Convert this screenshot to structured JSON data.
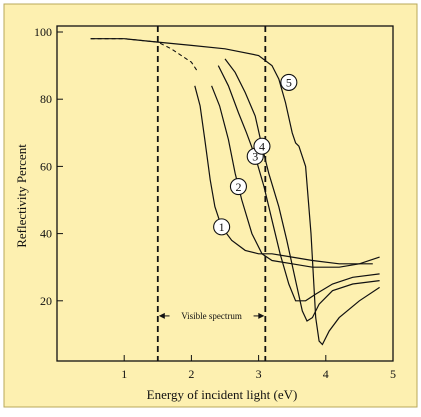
{
  "chart_data": {
    "type": "line",
    "title": "",
    "xlabel": "Energy of incident light (eV)",
    "ylabel": "Reflectivity Percent",
    "xlim": [
      0.0,
      5.0
    ],
    "ylim": [
      0,
      100
    ],
    "x_ticks": [
      "1",
      "2",
      "3",
      "4",
      "5"
    ],
    "y_ticks": [
      "20",
      "40",
      "60",
      "80",
      "100"
    ],
    "grid": false,
    "background_color": "#fdf0b0",
    "plot_background_color": "#fdf0b0",
    "annotation": {
      "label": "Visible spectrum",
      "x_start": 1.5,
      "x_end": 3.1
    },
    "visible_spectrum_bounds": [
      1.5,
      3.1
    ],
    "series": [
      {
        "marker": "1",
        "marker_at": [
          2.45,
          42
        ],
        "points": [
          [
            2.05,
            84
          ],
          [
            2.13,
            78
          ],
          [
            2.2,
            68
          ],
          [
            2.28,
            56
          ],
          [
            2.35,
            48
          ],
          [
            2.45,
            42
          ],
          [
            2.6,
            38
          ],
          [
            2.8,
            35
          ],
          [
            3.0,
            34
          ],
          [
            3.2,
            34
          ],
          [
            3.5,
            33
          ],
          [
            3.8,
            32
          ],
          [
            4.2,
            31
          ],
          [
            4.5,
            31
          ],
          [
            4.7,
            31
          ]
        ]
      },
      {
        "marker": "2",
        "marker_at": [
          2.7,
          54
        ],
        "points": [
          [
            2.3,
            84
          ],
          [
            2.42,
            78
          ],
          [
            2.55,
            68
          ],
          [
            2.65,
            58
          ],
          [
            2.75,
            50
          ],
          [
            2.9,
            40
          ],
          [
            3.05,
            34
          ],
          [
            3.2,
            32
          ],
          [
            3.5,
            31
          ],
          [
            3.8,
            30
          ],
          [
            4.2,
            30
          ],
          [
            4.5,
            31
          ],
          [
            4.8,
            33
          ]
        ]
      },
      {
        "marker": "3",
        "marker_at": [
          2.95,
          63
        ],
        "points": [
          [
            2.4,
            90
          ],
          [
            2.55,
            84
          ],
          [
            2.7,
            76
          ],
          [
            2.82,
            70
          ],
          [
            2.95,
            63
          ],
          [
            3.08,
            54
          ],
          [
            3.2,
            44
          ],
          [
            3.32,
            34
          ],
          [
            3.45,
            25
          ],
          [
            3.55,
            20
          ],
          [
            3.7,
            20
          ],
          [
            3.85,
            22
          ],
          [
            4.1,
            25
          ],
          [
            4.4,
            27
          ],
          [
            4.8,
            28
          ]
        ]
      },
      {
        "marker": "4",
        "marker_at": [
          3.05,
          66
        ],
        "points": [
          [
            2.5,
            92
          ],
          [
            2.65,
            88
          ],
          [
            2.8,
            82
          ],
          [
            2.95,
            75
          ],
          [
            3.05,
            66
          ],
          [
            3.15,
            58
          ],
          [
            3.3,
            48
          ],
          [
            3.42,
            38
          ],
          [
            3.55,
            26
          ],
          [
            3.65,
            17
          ],
          [
            3.72,
            14
          ],
          [
            3.8,
            15
          ],
          [
            3.9,
            19
          ],
          [
            4.1,
            23
          ],
          [
            4.4,
            25
          ],
          [
            4.8,
            26
          ]
        ]
      },
      {
        "marker": "5",
        "marker_at": [
          3.45,
          85
        ],
        "points": [
          [
            0.5,
            98
          ],
          [
            1.0,
            98
          ],
          [
            1.5,
            97
          ],
          [
            2.0,
            96
          ],
          [
            2.5,
            95
          ],
          [
            3.0,
            93
          ],
          [
            3.2,
            90
          ],
          [
            3.3,
            86
          ],
          [
            3.4,
            79
          ],
          [
            3.5,
            70
          ],
          [
            3.55,
            67
          ],
          [
            3.6,
            66
          ],
          [
            3.7,
            60
          ],
          [
            3.78,
            40
          ],
          [
            3.85,
            15
          ],
          [
            3.9,
            8
          ],
          [
            3.95,
            7
          ],
          [
            4.05,
            11
          ],
          [
            4.2,
            15
          ],
          [
            4.5,
            20
          ],
          [
            4.8,
            24
          ]
        ]
      }
    ],
    "dashed_segment": {
      "points": [
        [
          0.5,
          98
        ],
        [
          1.0,
          98
        ],
        [
          1.5,
          97
        ],
        [
          1.7,
          95
        ],
        [
          2.0,
          91
        ],
        [
          2.1,
          88
        ]
      ]
    }
  }
}
